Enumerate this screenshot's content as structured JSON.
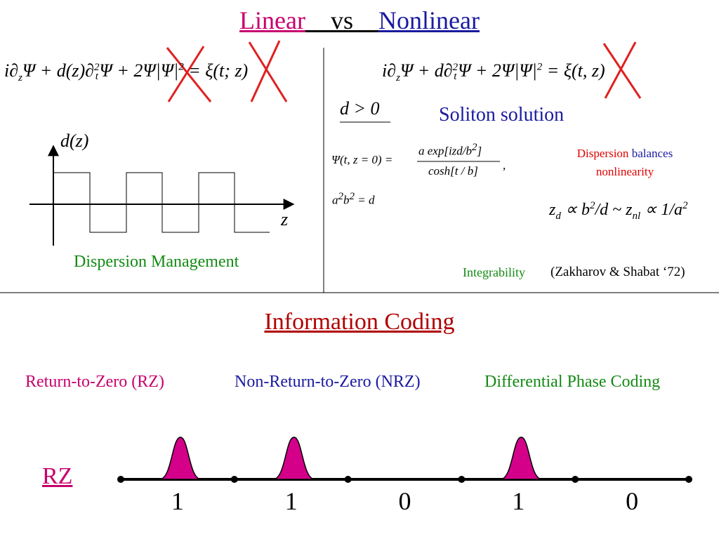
{
  "title": {
    "left": "Linear",
    "middle": "vs",
    "right": "Nonlinear"
  },
  "left_panel": {
    "equation": [
      "i∂",
      "z",
      "Ψ + d(z)∂",
      "2",
      "t",
      "Ψ + 2Ψ|Ψ|",
      "2",
      " = ξ(t; z)"
    ],
    "axis_y_label": "d(z)",
    "axis_x_label": "z",
    "caption": "Dispersion Management"
  },
  "right_panel": {
    "equation": [
      "i∂",
      "z",
      "Ψ + d∂",
      "2",
      "t",
      "Ψ + 2Ψ|Ψ|",
      "2",
      " = ξ(t, z)"
    ],
    "condition": "d > 0",
    "heading": "Soliton solution",
    "solution_lhs": "Ψ(t, z = 0) =",
    "solution_numerator": [
      "a exp[izd/b",
      "2",
      "]"
    ],
    "solution_denominator": "cosh[t / b]",
    "solution_comma": ",",
    "relation": [
      "a",
      "2",
      "b",
      "2",
      " = d"
    ],
    "balance_note": [
      "Dispersion",
      "balances",
      "nonlinearity"
    ],
    "scaling": [
      "z",
      "d",
      " ∝ b",
      "2",
      "/d ~ z",
      "nl",
      " ∝ 1/a",
      "2"
    ],
    "integrability": "Integrability",
    "reference": "(Zakharov & Shabat ‘72)"
  },
  "coding": {
    "heading": "Information Coding",
    "schemes": [
      "Return-to-Zero (RZ)",
      "Non-Return-to-Zero (NRZ)",
      "Differential Phase Coding"
    ],
    "example_label": "RZ",
    "bits": [
      1,
      1,
      0,
      1,
      0
    ]
  }
}
